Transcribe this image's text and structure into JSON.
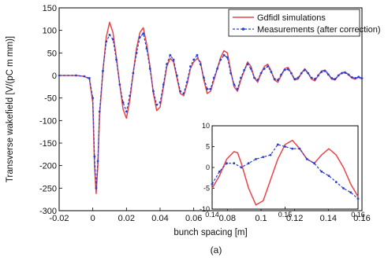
{
  "chart_data": [
    {
      "type": "line",
      "xlabel": "bunch spacing [m]",
      "ylabel": "Transverse wakefield [V/(pC m mm)]",
      "xlim": [
        -0.02,
        0.16
      ],
      "ylim": [
        -300,
        150
      ],
      "xticks": [
        "-0.02",
        "0",
        "0.02",
        "0.04",
        "0.06",
        "0.08",
        "0.1",
        "0.12",
        "0.14",
        "0.16"
      ],
      "yticks": [
        "150",
        "100",
        "50",
        "0",
        "-50",
        "-100",
        "-150",
        "-200",
        "-250",
        "-300"
      ],
      "grid": false,
      "legend": "top-right",
      "series": [
        {
          "name": "Gdfidl simulations",
          "color": "#e8454a",
          "marker": "none",
          "x": [
            -0.02,
            -0.01,
            -0.005,
            -0.002,
            0.0,
            0.001,
            0.002,
            0.003,
            0.004,
            0.006,
            0.008,
            0.01,
            0.012,
            0.014,
            0.016,
            0.018,
            0.02,
            0.022,
            0.024,
            0.026,
            0.028,
            0.03,
            0.032,
            0.034,
            0.036,
            0.038,
            0.04,
            0.042,
            0.044,
            0.046,
            0.048,
            0.05,
            0.052,
            0.054,
            0.056,
            0.058,
            0.06,
            0.062,
            0.064,
            0.066,
            0.068,
            0.07,
            0.072,
            0.074,
            0.076,
            0.078,
            0.08,
            0.082,
            0.084,
            0.086,
            0.088,
            0.09,
            0.092,
            0.094,
            0.096,
            0.098,
            0.1,
            0.102,
            0.104,
            0.106,
            0.108,
            0.11,
            0.112,
            0.114,
            0.116,
            0.118,
            0.12,
            0.122,
            0.124,
            0.126,
            0.128,
            0.13,
            0.132,
            0.134,
            0.136,
            0.138,
            0.14,
            0.142,
            0.144,
            0.146,
            0.148,
            0.15,
            0.152,
            0.154,
            0.156,
            0.158,
            0.16
          ],
          "y": [
            0,
            0,
            -2,
            -8,
            -60,
            -200,
            -262,
            -200,
            -90,
            10,
            85,
            118,
            95,
            40,
            -20,
            -75,
            -95,
            -55,
            5,
            60,
            95,
            106,
            70,
            20,
            -40,
            -78,
            -70,
            -25,
            20,
            38,
            30,
            -5,
            -40,
            -45,
            -20,
            15,
            30,
            38,
            30,
            -10,
            -40,
            -35,
            -10,
            15,
            40,
            55,
            50,
            10,
            -25,
            -35,
            -10,
            10,
            30,
            20,
            -5,
            -15,
            5,
            20,
            25,
            10,
            -10,
            -15,
            0,
            15,
            18,
            5,
            -10,
            -8,
            5,
            15,
            5,
            -8,
            -12,
            0,
            10,
            12,
            3,
            -8,
            -10,
            0,
            6,
            8,
            2,
            -6,
            -8,
            -4,
            -8
          ]
        },
        {
          "name": "Measurements (after correction)",
          "color": "#2a3fd0",
          "marker": "dot",
          "x": [
            -0.02,
            -0.01,
            -0.005,
            -0.002,
            0.0,
            0.001,
            0.002,
            0.003,
            0.004,
            0.006,
            0.008,
            0.01,
            0.012,
            0.014,
            0.016,
            0.018,
            0.02,
            0.022,
            0.024,
            0.026,
            0.028,
            0.03,
            0.032,
            0.034,
            0.036,
            0.038,
            0.04,
            0.042,
            0.044,
            0.046,
            0.048,
            0.05,
            0.052,
            0.054,
            0.056,
            0.058,
            0.06,
            0.062,
            0.064,
            0.066,
            0.068,
            0.07,
            0.072,
            0.074,
            0.076,
            0.078,
            0.08,
            0.082,
            0.084,
            0.086,
            0.088,
            0.09,
            0.092,
            0.094,
            0.096,
            0.098,
            0.1,
            0.102,
            0.104,
            0.106,
            0.108,
            0.11,
            0.112,
            0.114,
            0.116,
            0.118,
            0.12,
            0.122,
            0.124,
            0.126,
            0.128,
            0.13,
            0.132,
            0.134,
            0.136,
            0.138,
            0.14,
            0.142,
            0.144,
            0.146,
            0.148,
            0.15,
            0.152,
            0.154,
            0.156,
            0.158,
            0.16
          ],
          "y": [
            0,
            0,
            -2,
            -6,
            -50,
            -180,
            -250,
            -190,
            -80,
            10,
            75,
            90,
            80,
            35,
            -20,
            -60,
            -80,
            -45,
            5,
            50,
            85,
            93,
            60,
            15,
            -35,
            -65,
            -60,
            -20,
            25,
            45,
            35,
            0,
            -35,
            -40,
            -15,
            20,
            35,
            45,
            25,
            -5,
            -30,
            -30,
            -5,
            15,
            35,
            45,
            40,
            5,
            -20,
            -30,
            -5,
            12,
            25,
            15,
            -5,
            -10,
            5,
            15,
            20,
            8,
            -8,
            -10,
            2,
            12,
            14,
            5,
            -8,
            -5,
            5,
            12,
            5,
            -5,
            -8,
            0,
            8,
            10,
            2,
            -6,
            -8,
            0,
            5,
            6,
            2,
            -4,
            -6,
            -3,
            -6
          ]
        }
      ]
    },
    {
      "type": "line",
      "xlim": [
        0.14,
        0.16
      ],
      "ylim": [
        -10,
        10
      ],
      "xticks": [
        "0.14",
        "0.15",
        "0.16"
      ],
      "yticks": [
        "10",
        "5",
        "0",
        "-5",
        "-10"
      ],
      "grid": false,
      "series": [
        {
          "color": "#e8454a",
          "marker": "none",
          "x": [
            0.14,
            0.141,
            0.142,
            0.143,
            0.1435,
            0.144,
            0.145,
            0.146,
            0.147,
            0.148,
            0.149,
            0.15,
            0.151,
            0.152,
            0.153,
            0.154,
            0.155,
            0.156,
            0.157,
            0.158,
            0.159,
            0.16
          ],
          "y": [
            -5,
            -2,
            2,
            3.8,
            3.5,
            1,
            -5,
            -9,
            -8,
            -3,
            2,
            5.5,
            6.5,
            4.5,
            2,
            1,
            3,
            4.5,
            3,
            0,
            -4,
            -7
          ]
        },
        {
          "color": "#2a3fd0",
          "marker": "dot",
          "x": [
            0.14,
            0.141,
            0.142,
            0.143,
            0.144,
            0.145,
            0.146,
            0.147,
            0.148,
            0.149,
            0.15,
            0.151,
            0.152,
            0.153,
            0.154,
            0.155,
            0.156,
            0.157,
            0.158,
            0.159,
            0.16
          ],
          "y": [
            -4,
            -1,
            1,
            1,
            0,
            1,
            2,
            2.5,
            3,
            5.5,
            5,
            4.5,
            4.5,
            2,
            1,
            -1,
            -2,
            -3.5,
            -5,
            -6,
            -7.5
          ]
        }
      ]
    }
  ],
  "caption": "(a)"
}
